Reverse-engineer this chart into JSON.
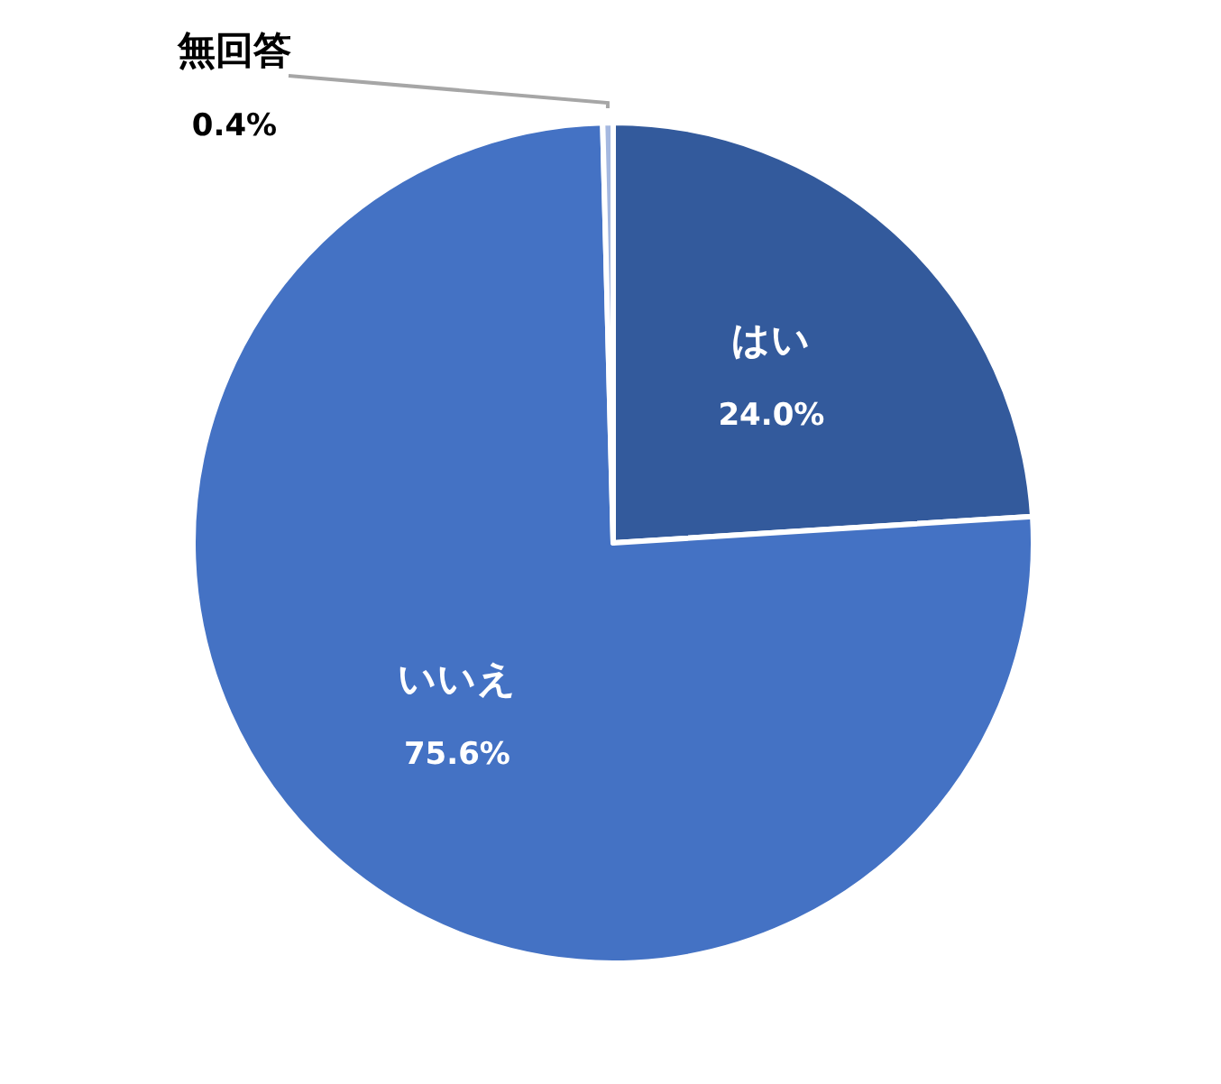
{
  "chart_data": {
    "type": "pie",
    "categories": [
      "はい",
      "いいえ",
      "無回答"
    ],
    "values": [
      24.0,
      75.6,
      0.4
    ],
    "colors": [
      "#335a9c",
      "#4472c4",
      "#a5b8e0"
    ],
    "value_labels": [
      "24.0%",
      "75.6%",
      "0.4%"
    ]
  }
}
